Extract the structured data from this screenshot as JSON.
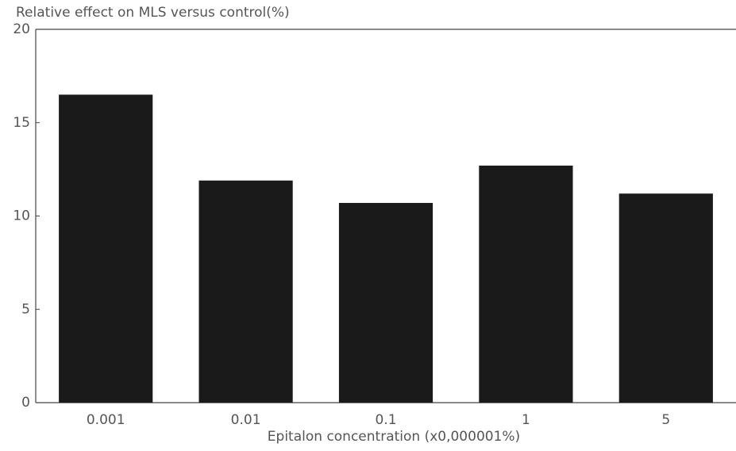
{
  "chart_data": {
    "type": "bar",
    "title": "Relative effect on MLS versus control(%)",
    "x_label": "Epitalon concentration (x0,000001%)",
    "categories": [
      "0.001",
      "0.01",
      "0.1",
      "1",
      "5"
    ],
    "values": [
      16.5,
      11.9,
      10.7,
      12.7,
      11.2
    ],
    "color": "#1a1a1a",
    "ylim": [
      0,
      20
    ],
    "yticks": [
      0,
      5,
      10,
      15,
      20
    ],
    "grid": false
  }
}
